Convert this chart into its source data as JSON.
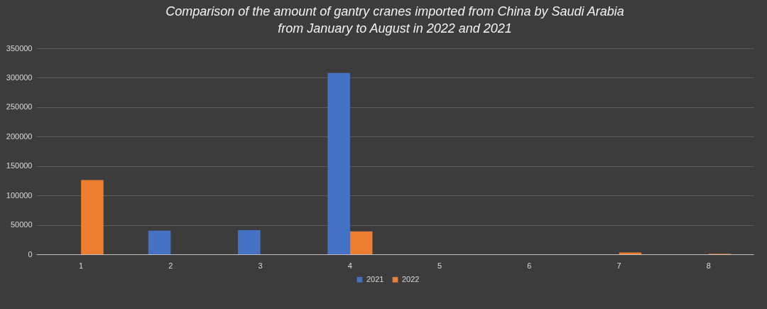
{
  "chart_data": {
    "type": "bar",
    "title": "Comparison of the amount of gantry cranes imported from China by Saudi Arabia from January to August in 2022 and 2021",
    "categories": [
      "1",
      "2",
      "3",
      "4",
      "5",
      "6",
      "7",
      "8"
    ],
    "series": [
      {
        "name": "2021",
        "color": "#4472c4",
        "values": [
          0,
          40000,
          41000,
          308000,
          0,
          0,
          0,
          0
        ]
      },
      {
        "name": "2022",
        "color": "#ed7d31",
        "values": [
          126000,
          0,
          0,
          39000,
          0,
          0,
          3000,
          1000
        ]
      }
    ],
    "ylim": [
      0,
      350000
    ],
    "yticks": [
      0,
      50000,
      100000,
      150000,
      200000,
      250000,
      300000,
      350000
    ],
    "grid": "y",
    "legend": "bottom"
  }
}
